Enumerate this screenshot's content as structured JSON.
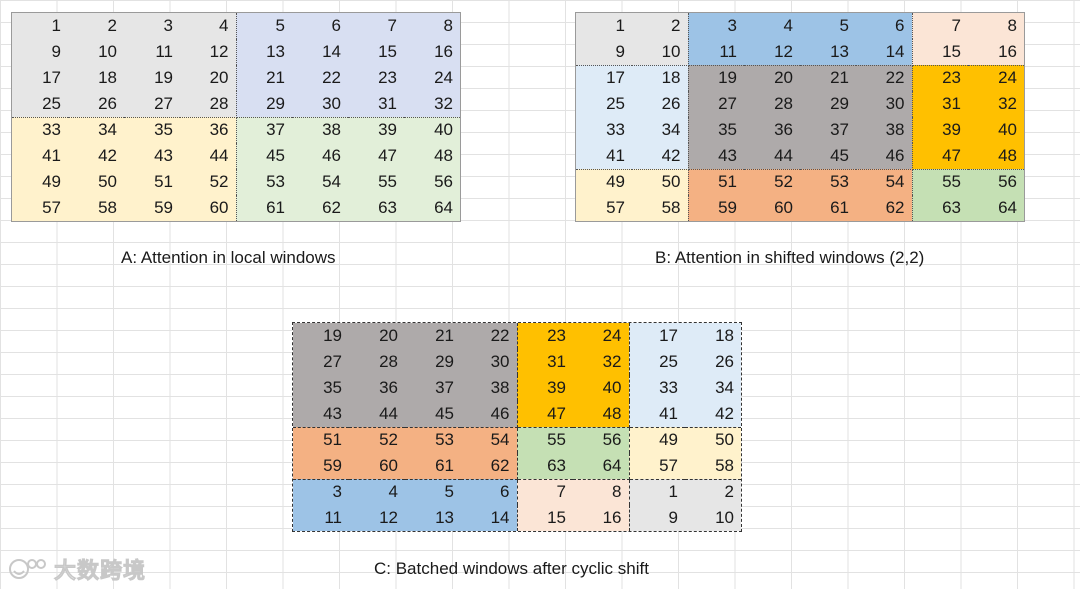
{
  "colors": {
    "gray": "#e6e6e6",
    "lavender": "#d8dff2",
    "cream": "#fff2cc",
    "mint": "#e2efd9",
    "blue": "#9dc3e6",
    "peach": "#fbe5d6",
    "light_blue": "#deebf7",
    "dark_gray": "#aeaaaa",
    "orange": "#ffc000",
    "salmon": "#f4b183",
    "green": "#c5e0b4"
  },
  "grid_a": {
    "caption": "A: Attention in local windows",
    "rows": [
      [
        1,
        2,
        3,
        4,
        5,
        6,
        7,
        8
      ],
      [
        9,
        10,
        11,
        12,
        13,
        14,
        15,
        16
      ],
      [
        17,
        18,
        19,
        20,
        21,
        22,
        23,
        24
      ],
      [
        25,
        26,
        27,
        28,
        29,
        30,
        31,
        32
      ],
      [
        33,
        34,
        35,
        36,
        37,
        38,
        39,
        40
      ],
      [
        41,
        42,
        43,
        44,
        45,
        46,
        47,
        48
      ],
      [
        49,
        50,
        51,
        52,
        53,
        54,
        55,
        56
      ],
      [
        57,
        58,
        59,
        60,
        61,
        62,
        63,
        64
      ]
    ],
    "colors": [
      [
        "gray",
        "gray",
        "gray",
        "gray",
        "lavender",
        "lavender",
        "lavender",
        "lavender"
      ],
      [
        "gray",
        "gray",
        "gray",
        "gray",
        "lavender",
        "lavender",
        "lavender",
        "lavender"
      ],
      [
        "gray",
        "gray",
        "gray",
        "gray",
        "lavender",
        "lavender",
        "lavender",
        "lavender"
      ],
      [
        "gray",
        "gray",
        "gray",
        "gray",
        "lavender",
        "lavender",
        "lavender",
        "lavender"
      ],
      [
        "cream",
        "cream",
        "cream",
        "cream",
        "mint",
        "mint",
        "mint",
        "mint"
      ],
      [
        "cream",
        "cream",
        "cream",
        "cream",
        "mint",
        "mint",
        "mint",
        "mint"
      ],
      [
        "cream",
        "cream",
        "cream",
        "cream",
        "mint",
        "mint",
        "mint",
        "mint"
      ],
      [
        "cream",
        "cream",
        "cream",
        "cream",
        "mint",
        "mint",
        "mint",
        "mint"
      ]
    ]
  },
  "grid_b": {
    "caption": "B: Attention in shifted windows (2,2)",
    "rows": [
      [
        1,
        2,
        3,
        4,
        5,
        6,
        7,
        8
      ],
      [
        9,
        10,
        11,
        12,
        13,
        14,
        15,
        16
      ],
      [
        17,
        18,
        19,
        20,
        21,
        22,
        23,
        24
      ],
      [
        25,
        26,
        27,
        28,
        29,
        30,
        31,
        32
      ],
      [
        33,
        34,
        35,
        36,
        37,
        38,
        39,
        40
      ],
      [
        41,
        42,
        43,
        44,
        45,
        46,
        47,
        48
      ],
      [
        49,
        50,
        51,
        52,
        53,
        54,
        55,
        56
      ],
      [
        57,
        58,
        59,
        60,
        61,
        62,
        63,
        64
      ]
    ],
    "colors": [
      [
        "gray",
        "gray",
        "blue",
        "blue",
        "blue",
        "blue",
        "peach",
        "peach"
      ],
      [
        "gray",
        "gray",
        "blue",
        "blue",
        "blue",
        "blue",
        "peach",
        "peach"
      ],
      [
        "light_blue",
        "light_blue",
        "dark_gray",
        "dark_gray",
        "dark_gray",
        "dark_gray",
        "orange",
        "orange"
      ],
      [
        "light_blue",
        "light_blue",
        "dark_gray",
        "dark_gray",
        "dark_gray",
        "dark_gray",
        "orange",
        "orange"
      ],
      [
        "light_blue",
        "light_blue",
        "dark_gray",
        "dark_gray",
        "dark_gray",
        "dark_gray",
        "orange",
        "orange"
      ],
      [
        "light_blue",
        "light_blue",
        "dark_gray",
        "dark_gray",
        "dark_gray",
        "dark_gray",
        "orange",
        "orange"
      ],
      [
        "cream",
        "cream",
        "salmon",
        "salmon",
        "salmon",
        "salmon",
        "green",
        "green"
      ],
      [
        "cream",
        "cream",
        "salmon",
        "salmon",
        "salmon",
        "salmon",
        "green",
        "green"
      ]
    ]
  },
  "grid_c": {
    "caption": "C: Batched windows after cyclic shift",
    "rows": [
      [
        19,
        20,
        21,
        22,
        23,
        24,
        17,
        18
      ],
      [
        27,
        28,
        29,
        30,
        31,
        32,
        25,
        26
      ],
      [
        35,
        36,
        37,
        38,
        39,
        40,
        33,
        34
      ],
      [
        43,
        44,
        45,
        46,
        47,
        48,
        41,
        42
      ],
      [
        51,
        52,
        53,
        54,
        55,
        56,
        49,
        50
      ],
      [
        59,
        60,
        61,
        62,
        63,
        64,
        57,
        58
      ],
      [
        3,
        4,
        5,
        6,
        7,
        8,
        1,
        2
      ],
      [
        11,
        12,
        13,
        14,
        15,
        16,
        9,
        10
      ]
    ],
    "colors": [
      [
        "dark_gray",
        "dark_gray",
        "dark_gray",
        "dark_gray",
        "orange",
        "orange",
        "light_blue",
        "light_blue"
      ],
      [
        "dark_gray",
        "dark_gray",
        "dark_gray",
        "dark_gray",
        "orange",
        "orange",
        "light_blue",
        "light_blue"
      ],
      [
        "dark_gray",
        "dark_gray",
        "dark_gray",
        "dark_gray",
        "orange",
        "orange",
        "light_blue",
        "light_blue"
      ],
      [
        "dark_gray",
        "dark_gray",
        "dark_gray",
        "dark_gray",
        "orange",
        "orange",
        "light_blue",
        "light_blue"
      ],
      [
        "salmon",
        "salmon",
        "salmon",
        "salmon",
        "green",
        "green",
        "cream",
        "cream"
      ],
      [
        "salmon",
        "salmon",
        "salmon",
        "salmon",
        "green",
        "green",
        "cream",
        "cream"
      ],
      [
        "blue",
        "blue",
        "blue",
        "blue",
        "peach",
        "peach",
        "gray",
        "gray"
      ],
      [
        "blue",
        "blue",
        "blue",
        "blue",
        "peach",
        "peach",
        "gray",
        "gray"
      ]
    ]
  },
  "watermark": {
    "text": "大数跨境",
    "icon": "smiley-logo-icon"
  }
}
